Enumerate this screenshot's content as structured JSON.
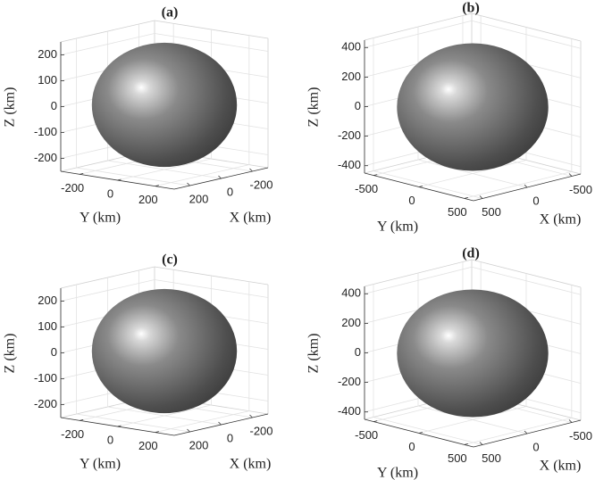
{
  "chart_data": [
    {
      "type": "surface3d",
      "title": "(a)",
      "xlabel": "X (km)",
      "ylabel": "Y (km)",
      "zlabel": "Z (km)",
      "color": "#8a8a8a",
      "grid": true,
      "xlim": [
        -300,
        300
      ],
      "ylim": [
        -300,
        300
      ],
      "zlim": [
        -250,
        250
      ],
      "xticks": [
        -200,
        0,
        200
      ],
      "yticks": [
        -200,
        0,
        200
      ],
      "zticks": [
        -200,
        -100,
        0,
        100,
        200
      ]
    },
    {
      "type": "surface3d",
      "title": "(b)",
      "xlabel": "X (km)",
      "ylabel": "Y (km)",
      "zlabel": "Z (km)",
      "color": "#8a8a8a",
      "grid": true,
      "xlim": [
        -600,
        600
      ],
      "ylim": [
        -600,
        600
      ],
      "zlim": [
        -450,
        450
      ],
      "xticks": [
        -500,
        0,
        500
      ],
      "yticks": [
        -500,
        0,
        500
      ],
      "zticks": [
        -400,
        -200,
        0,
        200,
        400
      ]
    },
    {
      "type": "surface3d",
      "title": "(c)",
      "xlabel": "X (km)",
      "ylabel": "Y (km)",
      "zlabel": "Z (km)",
      "color": "#8a8a8a",
      "grid": true,
      "xlim": [
        -300,
        300
      ],
      "ylim": [
        -300,
        300
      ],
      "zlim": [
        -250,
        250
      ],
      "xticks": [
        -200,
        0,
        200
      ],
      "yticks": [
        -200,
        0,
        200
      ],
      "zticks": [
        -200,
        -100,
        0,
        100,
        200
      ]
    },
    {
      "type": "surface3d",
      "title": "(d)",
      "xlabel": "X (km)",
      "ylabel": "Y (km)",
      "zlabel": "Z (km)",
      "color": "#8a8a8a",
      "grid": true,
      "xlim": [
        -600,
        600
      ],
      "ylim": [
        -600,
        600
      ],
      "zlim": [
        -450,
        450
      ],
      "xticks": [
        -500,
        0,
        500
      ],
      "yticks": [
        -500,
        0,
        500
      ],
      "zticks": [
        -400,
        -200,
        0,
        200,
        400
      ]
    }
  ]
}
